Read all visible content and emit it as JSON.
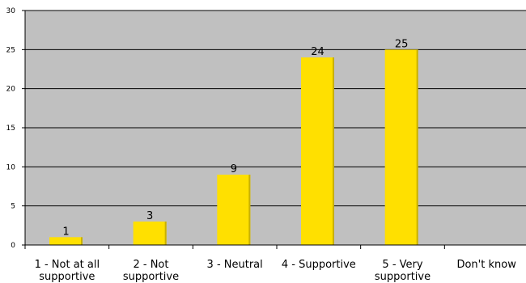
{
  "chart_data": {
    "type": "bar",
    "title": "",
    "xlabel": "",
    "ylabel": "",
    "ylim": [
      0,
      30
    ],
    "yticks": [
      0,
      5,
      10,
      15,
      20,
      25,
      30
    ],
    "grid": true,
    "categories": [
      [
        "1 - Not at all",
        "supportive"
      ],
      [
        "2 - Not",
        "supportive"
      ],
      [
        "3 - Neutral"
      ],
      [
        "4 - Supportive"
      ],
      [
        "5 - Very",
        "supportive"
      ],
      [
        "Don't know"
      ]
    ],
    "values": [
      1,
      3,
      9,
      24,
      25,
      null
    ],
    "data_labels": [
      "1",
      "3",
      "9",
      "24",
      "25",
      ""
    ],
    "colors": {
      "plot_background": "#c0c0c0",
      "bar": "#ffe000",
      "bar_shadow": "#c8b000",
      "grid": "#000000"
    }
  }
}
